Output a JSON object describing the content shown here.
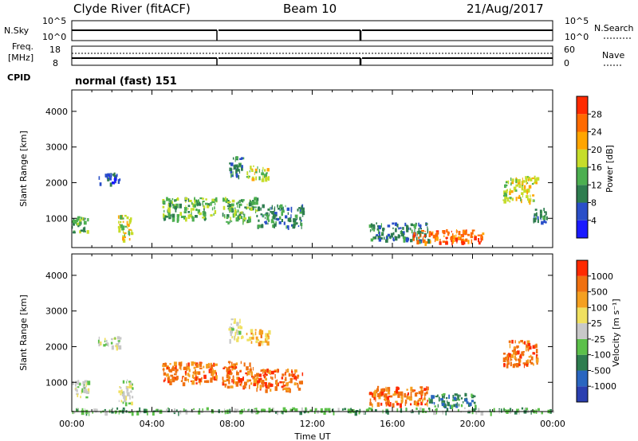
{
  "header": {
    "station": "Clyde River (fitACF)",
    "beam": "Beam 10",
    "date": "21/Aug/2017"
  },
  "top_panels": {
    "nsky_label": "N.Sky",
    "nsky_ticks": [
      "10^5",
      "10^0"
    ],
    "nsearch_label": "N.Search",
    "nsearch_ticks": [
      "10^5",
      "10^0"
    ],
    "freq_label_1": "Freq.",
    "freq_label_2": "[MHz]",
    "freq_ticks": [
      "18",
      "8"
    ],
    "nave_label": "Nave",
    "nave_ticks": [
      "60",
      "0"
    ],
    "cpid_label": "CPID",
    "cpid_value": "normal (fast) 151"
  },
  "colors": {
    "power": [
      "#1a1aff",
      "#2a4fc8",
      "#2e7d4f",
      "#4caf50",
      "#c6dd2a",
      "#ffa500",
      "#ff6a00",
      "#ff2a00"
    ],
    "velocity": [
      "#2a3fb0",
      "#2a66c0",
      "#2e7d4f",
      "#5cc04a",
      "#c8c8c8",
      "#f0e060",
      "#f5a020",
      "#f07010",
      "#ff2a00"
    ]
  },
  "chart_data": [
    {
      "type": "heatmap",
      "title": "Power",
      "xlabel": "Time UT",
      "ylabel": "Slant Range [km]",
      "x_ticks": [
        "00:00",
        "04:00",
        "08:00",
        "12:00",
        "16:00",
        "20:00",
        "00:00"
      ],
      "y_ticks": [
        1000,
        2000,
        3000,
        4000
      ],
      "ylim": [
        180,
        4600
      ],
      "colorbar_label": "Power [dB]",
      "colorbar_ticks": [
        4,
        8,
        12,
        16,
        20,
        24,
        28
      ],
      "regions": [
        {
          "t0": 0.0,
          "t1": 0.8,
          "r0": 600,
          "r1": 1100,
          "level": 3
        },
        {
          "t0": 1.3,
          "t1": 2.4,
          "r0": 2000,
          "r1": 2300,
          "level": 1
        },
        {
          "t0": 2.3,
          "t1": 3.0,
          "r0": 400,
          "r1": 1100,
          "level": 4
        },
        {
          "t0": 4.5,
          "t1": 7.2,
          "r0": 1000,
          "r1": 1600,
          "level": 3
        },
        {
          "t0": 7.5,
          "t1": 9.2,
          "r0": 900,
          "r1": 1600,
          "level": 3
        },
        {
          "t0": 9.2,
          "t1": 11.5,
          "r0": 800,
          "r1": 1400,
          "level": 2
        },
        {
          "t0": 7.8,
          "t1": 8.5,
          "r0": 2200,
          "r1": 2800,
          "level": 2
        },
        {
          "t0": 8.7,
          "t1": 9.8,
          "r0": 2100,
          "r1": 2500,
          "level": 4
        },
        {
          "t0": 14.8,
          "t1": 17.8,
          "r0": 400,
          "r1": 900,
          "level": 2
        },
        {
          "t0": 17.0,
          "t1": 20.5,
          "r0": 350,
          "r1": 700,
          "level": 6
        },
        {
          "t0": 21.5,
          "t1": 23.2,
          "r0": 1500,
          "r1": 2200,
          "level": 4
        },
        {
          "t0": 23.0,
          "t1": 23.8,
          "r0": 900,
          "r1": 1300,
          "level": 2
        }
      ]
    },
    {
      "type": "heatmap",
      "title": "Velocity",
      "xlabel": "Time UT",
      "ylabel": "Slant Range [km]",
      "x_ticks": [
        "00:00",
        "04:00",
        "08:00",
        "12:00",
        "16:00",
        "20:00",
        "00:00"
      ],
      "y_ticks": [
        1000,
        2000,
        3000,
        4000
      ],
      "ylim": [
        180,
        4600
      ],
      "colorbar_label": "Velocity [m s⁻¹]",
      "colorbar_ticks": [
        "1000",
        "500",
        "100",
        "25",
        "-25",
        "-100",
        "-500",
        "-1000"
      ],
      "regions": [
        {
          "t0": 0.0,
          "t1": 0.8,
          "r0": 600,
          "r1": 1100,
          "level": 4
        },
        {
          "t0": 1.3,
          "t1": 2.4,
          "r0": 2000,
          "r1": 2300,
          "level": 4
        },
        {
          "t0": 2.3,
          "t1": 3.0,
          "r0": 400,
          "r1": 1100,
          "level": 4
        },
        {
          "t0": 4.5,
          "t1": 7.2,
          "r0": 1000,
          "r1": 1600,
          "level": 7
        },
        {
          "t0": 7.5,
          "t1": 9.2,
          "r0": 900,
          "r1": 1600,
          "level": 7
        },
        {
          "t0": 9.2,
          "t1": 11.5,
          "r0": 800,
          "r1": 1400,
          "level": 7
        },
        {
          "t0": 7.8,
          "t1": 8.5,
          "r0": 2200,
          "r1": 2800,
          "level": 4
        },
        {
          "t0": 8.7,
          "t1": 9.8,
          "r0": 2100,
          "r1": 2500,
          "level": 6
        },
        {
          "t0": 14.8,
          "t1": 17.8,
          "r0": 400,
          "r1": 900,
          "level": 7
        },
        {
          "t0": 17.8,
          "t1": 20.2,
          "r0": 350,
          "r1": 700,
          "level": 2
        },
        {
          "t0": 21.5,
          "t1": 23.2,
          "r0": 1500,
          "r1": 2200,
          "level": 7
        },
        {
          "t0": 0.0,
          "t1": 24.0,
          "r0": 180,
          "r1": 300,
          "level": 3
        }
      ]
    }
  ]
}
